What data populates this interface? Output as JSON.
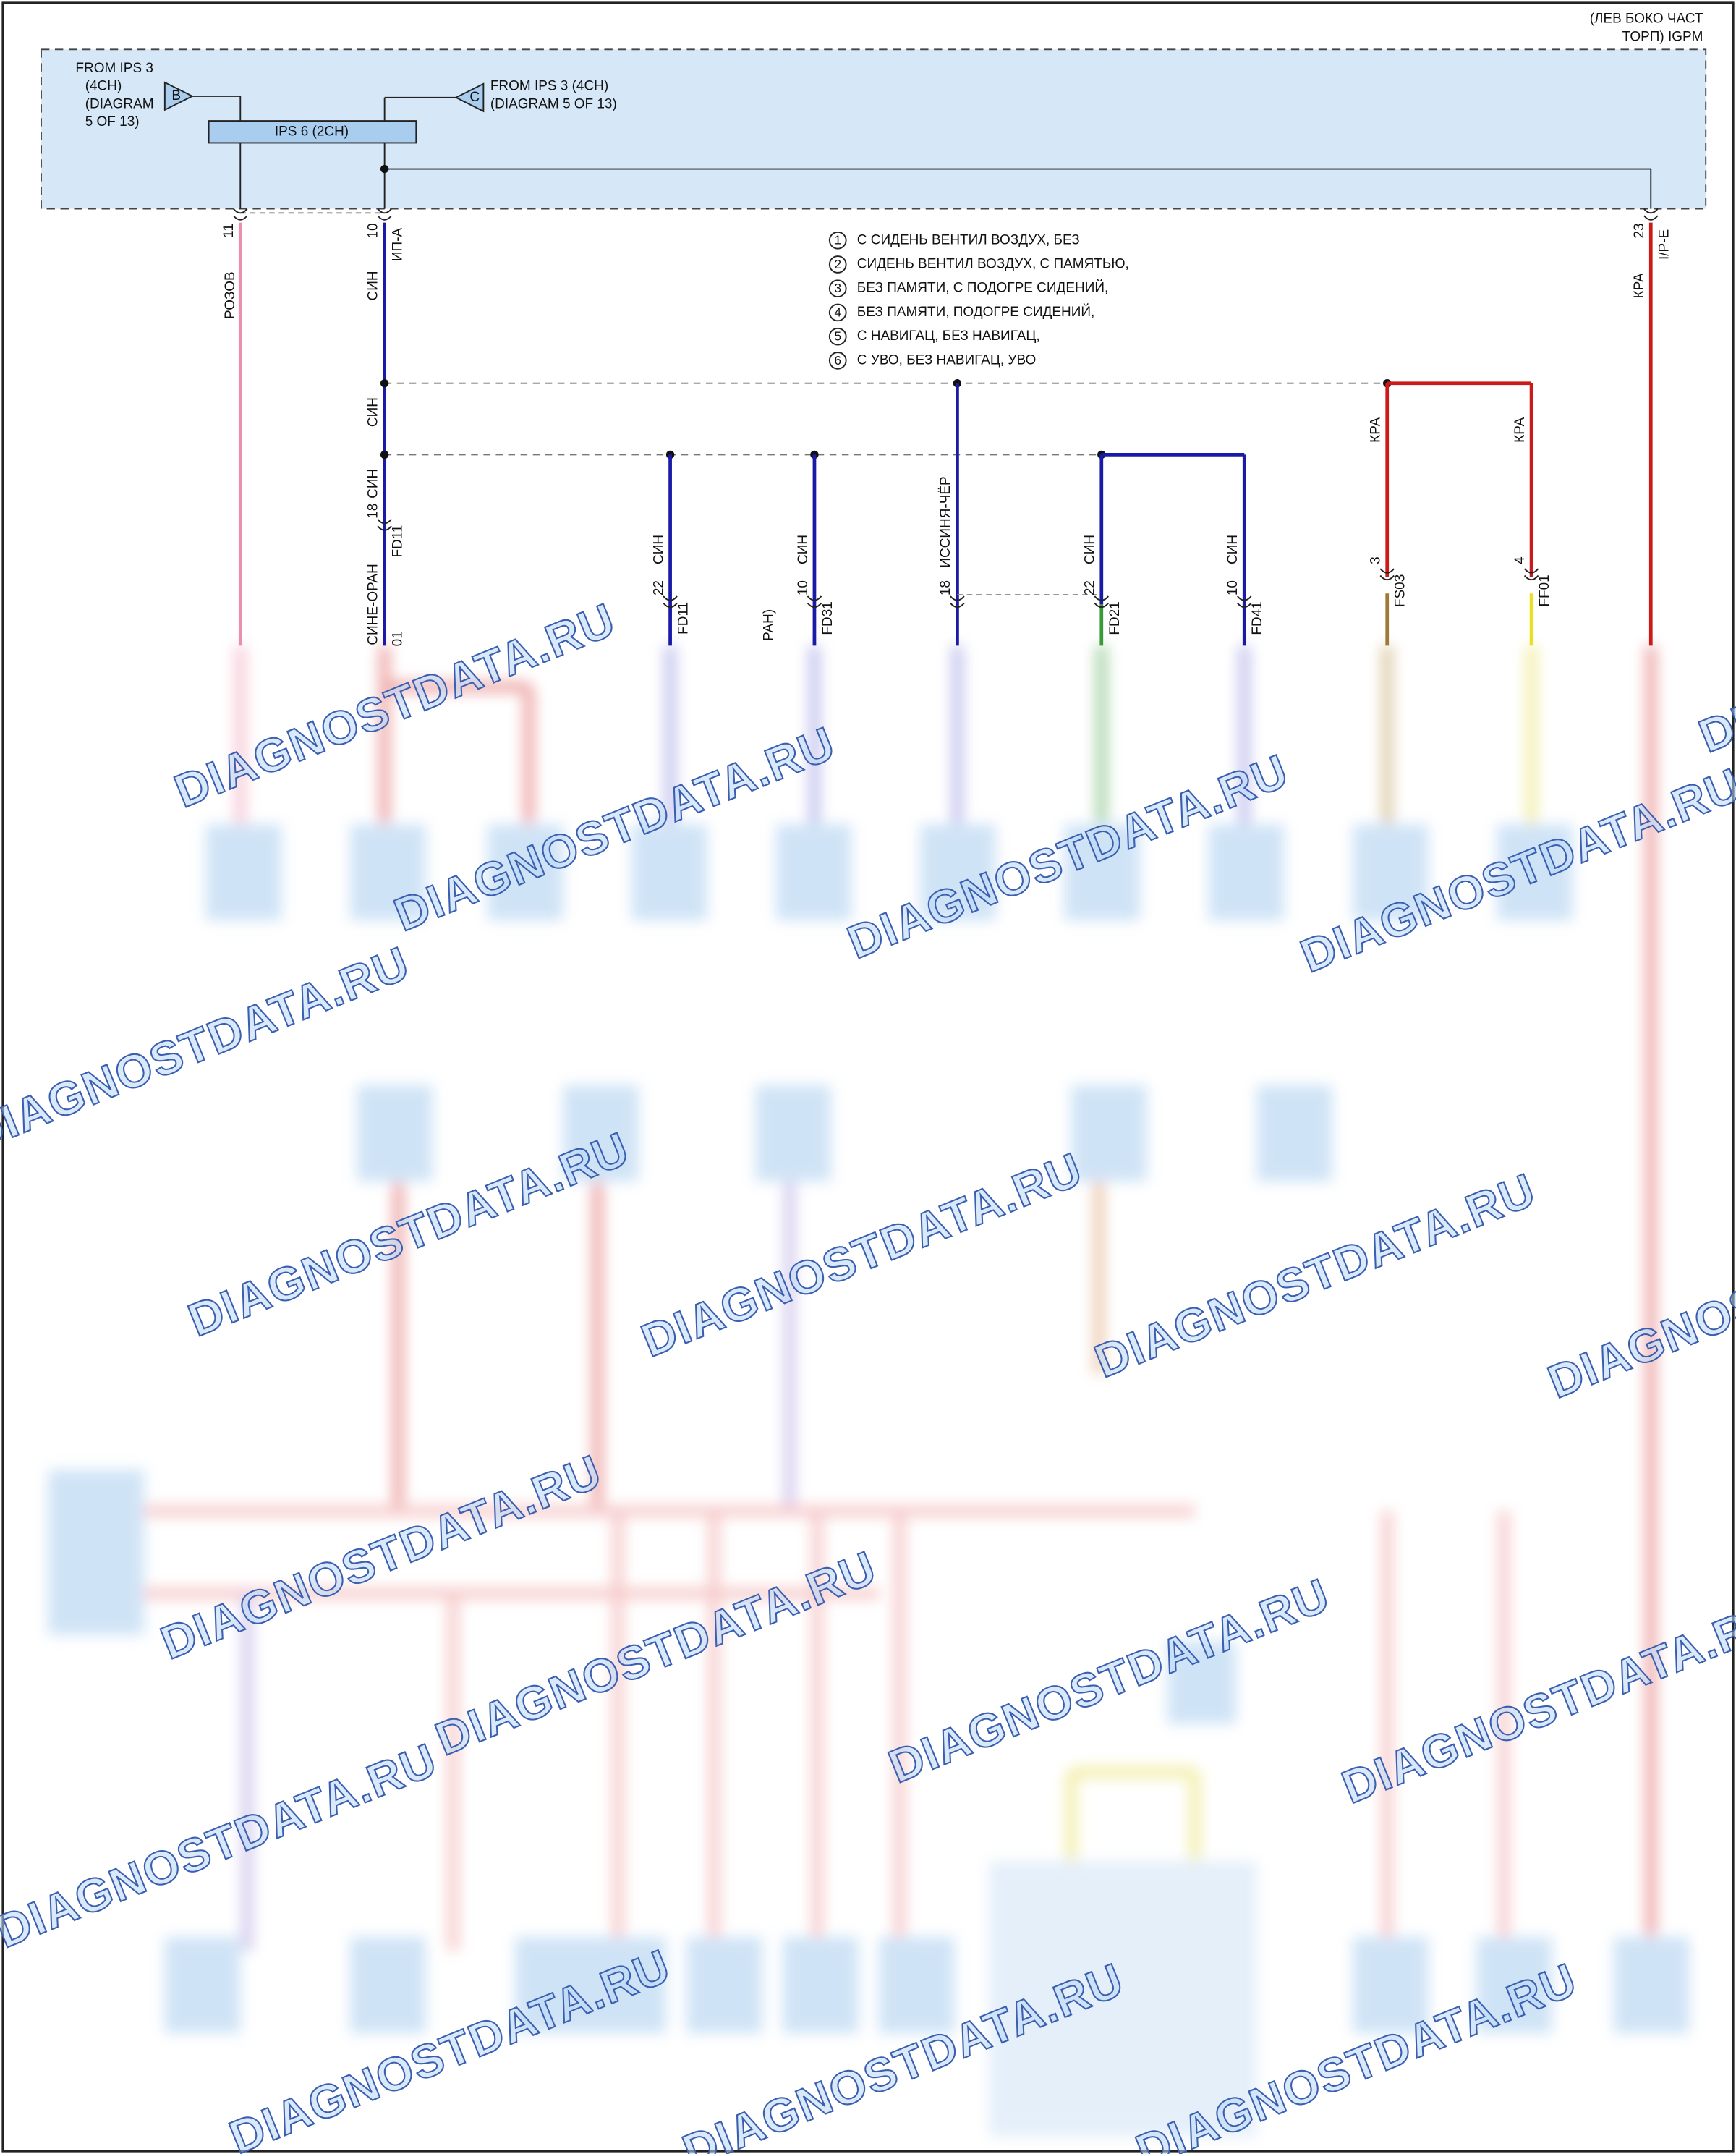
{
  "header": {
    "location": [
      "(ЛЕВ БОКО ЧАСТ",
      "ТОРП) IGPM"
    ]
  },
  "module": {
    "label": "IPS 6 (2CH)",
    "inputs": [
      {
        "letter": "B",
        "text": [
          "FROM IPS 3",
          "(4CH)",
          "(DIAGRAM",
          "5 OF 13)"
        ]
      },
      {
        "letter": "C",
        "text": [
          "FROM IPS 3 (4CH)",
          "(DIAGRAM 5 OF 13)"
        ]
      }
    ]
  },
  "top_pins": [
    {
      "number": "11"
    },
    {
      "number": "10",
      "name": "ИП-А"
    },
    {
      "number": "23",
      "name": "I/P-E"
    }
  ],
  "notes": [
    {
      "number": "1",
      "text": "С СИДЕНЬ ВЕНТИЛ ВОЗДУХ, БЕЗ"
    },
    {
      "number": "2",
      "text": "СИДЕНЬ ВЕНТИЛ ВОЗДУХ, С ПАМЯТЬЮ,"
    },
    {
      "number": "3",
      "text": "БЕЗ ПАМЯТИ, С ПОДОГРЕ СИДЕНИЙ,"
    },
    {
      "number": "4",
      "text": "БЕЗ ПАМЯТИ, ПОДОГРЕ СИДЕНИЙ,"
    },
    {
      "number": "5",
      "text": "С НАВИГАЦ, БЕЗ НАВИГАЦ,"
    },
    {
      "number": "6",
      "text": "С УВО, БЕЗ НАВИГАЦ, УВО"
    }
  ],
  "wire_labels": [
    "РОЗОВ",
    "СИН",
    "КРА",
    "СИН",
    "СИН",
    "КРА",
    "КРА",
    "СИН",
    "СИН",
    "ИССИНЯ-ЧЁР",
    "СИН",
    "СИН",
    "СИНЕ-ОРАН"
  ],
  "inline_connectors": [
    {
      "pin": "18",
      "name": "FD11"
    },
    {
      "pin": "22",
      "name": "FD11"
    },
    {
      "pin": "10",
      "name": "FD31"
    },
    {
      "pin": "18"
    },
    {
      "pin": "22",
      "name": "FD21"
    },
    {
      "pin": "10",
      "name": "FD41"
    },
    {
      "pin": "3",
      "name": "FS03"
    },
    {
      "pin": "4",
      "name": "FF01"
    }
  ],
  "fragments": [
    "01",
    "РАН)"
  ],
  "watermarks": [
    "DIAGNOSTDATA.RU",
    "DIAGNOSTDATA.RU",
    "DIAGNOSTDATA.RU",
    "DIAGNOSTDATA.RU",
    "DIAGNOSTDATA.RU",
    "DIAGNOSTDATA.RU",
    "DIAGNOSTDATA.RU",
    "DIAGNOSTDATA.RU",
    "DIAGNOSTDATA.RU",
    "DIAGNOSTDATA.RU",
    "DIAGNOSTDATA.RU",
    "DIAGNOSTDATA.RU",
    "DIAGNOSTDATA.RU",
    "DIAGNOSTDATA.RU",
    "DIAGNOSTDATA.RU",
    "DIAGNOSTDATA.RU",
    "DIAGNOSTDATA.RU",
    "DIAGNOSTDATA.RU"
  ]
}
